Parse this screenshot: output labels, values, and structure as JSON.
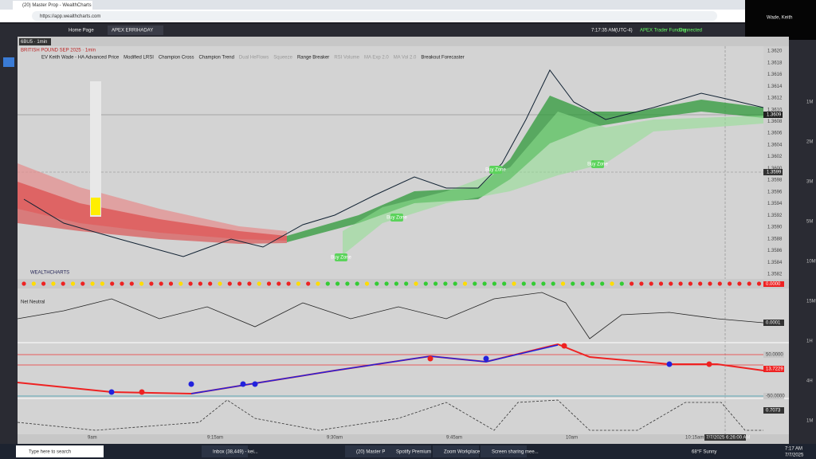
{
  "browser": {
    "tab": "(20) Master Prop - WealthCharts",
    "url": "https://app.wealthcharts.com"
  },
  "app": {
    "tabs": [
      "Home Page",
      "APEX ERRIHADAY"
    ],
    "clock": "7:17:35 AM",
    "timezone": "(UTC-4)",
    "account": "APEX Trader Funding",
    "status": "Connected"
  },
  "chart": {
    "symbol": "6BU5 · 1min",
    "title": "BRITISH POUND SEP 2025 · 1min",
    "indicators": [
      "EV Keith Wade - HA Advanced Price",
      "Modified LRSI",
      "Champion Cross",
      "Champion Trend",
      "Dual HeFlows",
      "Squeeze",
      "Range Breaker",
      "RSI Volume",
      "MA Exp 2.0",
      "MA Vol 2.0",
      "Breakout Forecaster"
    ],
    "price_labels": [
      "1.3620",
      "1.3618",
      "1.3616",
      "1.3614",
      "1.3612",
      "1.3610",
      "1.3608",
      "1.3606",
      "1.3604",
      "1.3602",
      "1.3600",
      "1.3598",
      "1.3596",
      "1.3594",
      "1.3592",
      "1.3590",
      "1.3588",
      "1.3586",
      "1.3584",
      "1.3582"
    ],
    "last_price": "1.3609",
    "cursor_price": "1.3599",
    "zone_labels": [
      "Buy Zone",
      "Buy Zone",
      "Buy Zone",
      "Buy Zone"
    ],
    "time_labels": [
      "9am",
      "9:15am",
      "9:30am",
      "9:45am",
      "10am",
      "10:15am"
    ],
    "cursor_time": "7/7/2025 6:26:00 AM",
    "brand": "WEALTHCHARTS",
    "panel_label": "Net Neutral",
    "panel_values": [
      "0.0000",
      "0.0001",
      "50.0000",
      "13.7229",
      "-50.0000",
      "0.7073"
    ]
  },
  "right_strip": [
    "1M",
    "2M",
    "3M",
    "5M",
    "10M",
    "15M",
    "1H",
    "4H",
    "1M"
  ],
  "user": "Wade, Keith",
  "taskbar": {
    "search": "Type here to search",
    "apps": [
      "Inbox (38,449) - kei...",
      "(20) Master Prop - ...",
      "Spotify Premium",
      "Zoom Workplace",
      "Screen sharing mee..."
    ],
    "weather": "68°F  Sunny",
    "time": "7:17 AM",
    "date": "7/7/2025"
  }
}
